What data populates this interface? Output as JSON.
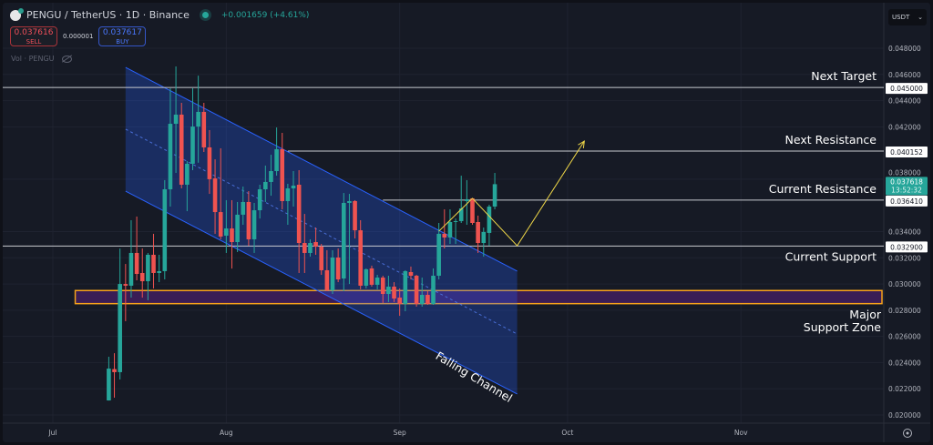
{
  "header": {
    "symbol": "PENGU",
    "title": "PENGU / TetherUS · 1D · Binance",
    "change": "+0.001659 (+4.61%)",
    "status": "market-open-dot"
  },
  "trade": {
    "sell_price": "0.037616",
    "sell_label": "SELL",
    "spread": "0.000001",
    "buy_price": "0.037617",
    "buy_label": "BUY"
  },
  "volume_indicator": {
    "label": "Vol · PENGU",
    "icon": "eye-hidden-icon"
  },
  "currency_select": {
    "value": "USDT"
  },
  "colors": {
    "up": "#26a69a",
    "down": "#ef5350",
    "channel": "#2962ff",
    "zone": "#f7a21b",
    "projection": "#f0d848",
    "background": "#161a25"
  },
  "chart_data": {
    "type": "candlestick",
    "price_ticks": [
      "0.048000",
      "0.046000",
      "0.044000",
      "0.042000",
      "0.038000",
      "0.034000",
      "0.032000",
      "0.030000",
      "0.028000",
      "0.026000",
      "0.024000",
      "0.022000",
      "0.020000"
    ],
    "ylim": [
      0.0192,
      0.05
    ],
    "time_ticks": [
      {
        "label": "Jul",
        "date": "2025-07-01"
      },
      {
        "label": "Aug",
        "date": "2025-08-01"
      },
      {
        "label": "Sep",
        "date": "2025-09-01"
      },
      {
        "label": "Oct",
        "date": "2025-10-01"
      },
      {
        "label": "Nov",
        "date": "2025-11-01"
      }
    ],
    "xlim": [
      "2025-06-22",
      "2025-11-30"
    ],
    "candles_fields": [
      "date",
      "open",
      "high",
      "low",
      "close"
    ],
    "candles": [
      [
        "2025-07-11",
        0.02111,
        0.02445,
        0.0211,
        0.02354
      ],
      [
        "2025-07-12",
        0.0235,
        0.02472,
        0.02132,
        0.02327
      ],
      [
        "2025-07-13",
        0.02327,
        0.03271,
        0.02271,
        0.03
      ],
      [
        "2025-07-14",
        0.03,
        0.03153,
        0.02716,
        0.02987
      ],
      [
        "2025-07-15",
        0.02987,
        0.03487,
        0.02896,
        0.03237
      ],
      [
        "2025-07-16",
        0.03237,
        0.03515,
        0.03028,
        0.03077
      ],
      [
        "2025-07-17",
        0.03084,
        0.03271,
        0.02896,
        0.03021
      ],
      [
        "2025-07-18",
        0.03021,
        0.03237,
        0.02876,
        0.03223
      ],
      [
        "2025-07-19",
        0.03223,
        0.03383,
        0.02966,
        0.03084
      ],
      [
        "2025-07-20",
        0.03084,
        0.03223,
        0.03014,
        0.03098
      ],
      [
        "2025-07-21",
        0.03098,
        0.03793,
        0.03035,
        0.03723
      ],
      [
        "2025-07-22",
        0.03723,
        0.04494,
        0.03591,
        0.04223
      ],
      [
        "2025-07-23",
        0.04223,
        0.04661,
        0.03848,
        0.04293
      ],
      [
        "2025-07-24",
        0.04293,
        0.04383,
        0.0373,
        0.03758
      ],
      [
        "2025-07-25",
        0.03758,
        0.03938,
        0.03556,
        0.03918
      ],
      [
        "2025-07-26",
        0.03918,
        0.04494,
        0.03869,
        0.04202
      ],
      [
        "2025-07-27",
        0.04202,
        0.04591,
        0.03926,
        0.04314
      ],
      [
        "2025-07-28",
        0.04314,
        0.04383,
        0.04008,
        0.04043
      ],
      [
        "2025-07-29",
        0.04043,
        0.04175,
        0.03688,
        0.038
      ],
      [
        "2025-07-30",
        0.03806,
        0.03952,
        0.03383,
        0.03549
      ],
      [
        "2025-07-31",
        0.03549,
        0.04036,
        0.03341,
        0.03362
      ],
      [
        "2025-08-01",
        0.03369,
        0.0364,
        0.03237,
        0.03424
      ],
      [
        "2025-08-02",
        0.03424,
        0.0364,
        0.03118,
        0.0332
      ],
      [
        "2025-08-03",
        0.0332,
        0.03626,
        0.03244,
        0.03529
      ],
      [
        "2025-08-04",
        0.03529,
        0.03744,
        0.03452,
        0.03626
      ],
      [
        "2025-08-05",
        0.03626,
        0.03709,
        0.03292,
        0.03341
      ],
      [
        "2025-08-06",
        0.03341,
        0.03619,
        0.03237,
        0.03563
      ],
      [
        "2025-08-07",
        0.03563,
        0.03758,
        0.035,
        0.03723
      ],
      [
        "2025-08-08",
        0.03723,
        0.03904,
        0.03626,
        0.03779
      ],
      [
        "2025-08-09",
        0.03779,
        0.03987,
        0.03674,
        0.03862
      ],
      [
        "2025-08-10",
        0.03862,
        0.04195,
        0.03827,
        0.04029
      ],
      [
        "2025-08-11",
        0.04029,
        0.04154,
        0.0357,
        0.03633
      ],
      [
        "2025-08-12",
        0.03633,
        0.03765,
        0.03452,
        0.0373
      ],
      [
        "2025-08-13",
        0.0373,
        0.03862,
        0.03591,
        0.03751
      ],
      [
        "2025-08-14",
        0.03758,
        0.03869,
        0.03084,
        0.03313
      ],
      [
        "2025-08-15",
        0.03313,
        0.03535,
        0.03084,
        0.03237
      ],
      [
        "2025-08-16",
        0.03237,
        0.03341,
        0.03209,
        0.03313
      ],
      [
        "2025-08-17",
        0.0332,
        0.03431,
        0.03223,
        0.03285
      ],
      [
        "2025-08-18",
        0.03285,
        0.03306,
        0.0307,
        0.03105
      ],
      [
        "2025-08-19",
        0.03105,
        0.03258,
        0.02945,
        0.02952
      ],
      [
        "2025-08-20",
        0.02952,
        0.03258,
        0.02924,
        0.03202
      ],
      [
        "2025-08-21",
        0.03202,
        0.03271,
        0.03014,
        0.03035
      ],
      [
        "2025-08-22",
        0.03042,
        0.03695,
        0.02945,
        0.03619
      ],
      [
        "2025-08-23",
        0.03619,
        0.03688,
        0.03,
        0.03633
      ],
      [
        "2025-08-24",
        0.03633,
        0.0364,
        0.03348,
        0.0341
      ],
      [
        "2025-08-25",
        0.0341,
        0.03487,
        0.02959,
        0.02987
      ],
      [
        "2025-08-26",
        0.02987,
        0.03119,
        0.02966,
        0.03112
      ],
      [
        "2025-08-27",
        0.03119,
        0.0314,
        0.0298,
        0.02994
      ],
      [
        "2025-08-28",
        0.02994,
        0.0307,
        0.02959,
        0.03049
      ],
      [
        "2025-08-29",
        0.03049,
        0.03063,
        0.02855,
        0.02924
      ],
      [
        "2025-08-30",
        0.02924,
        0.03063,
        0.02862,
        0.0298
      ],
      [
        "2025-08-31",
        0.0298,
        0.03014,
        0.02862,
        0.02889
      ],
      [
        "2025-09-01",
        0.02896,
        0.02966,
        0.02757,
        0.02848
      ],
      [
        "2025-09-02",
        0.02848,
        0.03105,
        0.02792,
        0.03098
      ],
      [
        "2025-09-03",
        0.03091,
        0.03133,
        0.03035,
        0.03063
      ],
      [
        "2025-09-04",
        0.03063,
        0.0307,
        0.02827,
        0.02848
      ],
      [
        "2025-09-05",
        0.02848,
        0.03049,
        0.02827,
        0.02917
      ],
      [
        "2025-09-06",
        0.02917,
        0.02945,
        0.02841,
        0.02848
      ],
      [
        "2025-09-07",
        0.02848,
        0.03119,
        0.02841,
        0.03063
      ],
      [
        "2025-09-08",
        0.03063,
        0.03466,
        0.03035,
        0.03383
      ],
      [
        "2025-09-09",
        0.03383,
        0.0357,
        0.03271,
        0.03355
      ],
      [
        "2025-09-10",
        0.03355,
        0.0357,
        0.03306,
        0.03473
      ],
      [
        "2025-09-11",
        0.03473,
        0.035,
        0.03306,
        0.0348
      ],
      [
        "2025-09-12",
        0.0348,
        0.03827,
        0.03466,
        0.03577
      ],
      [
        "2025-09-13",
        0.03633,
        0.03793,
        0.03452,
        0.03647
      ],
      [
        "2025-09-14",
        0.03654,
        0.03654,
        0.03452,
        0.03466
      ],
      [
        "2025-09-15",
        0.03473,
        0.03522,
        0.03237,
        0.03313
      ],
      [
        "2025-09-16",
        0.03313,
        0.03431,
        0.03209,
        0.03397
      ],
      [
        "2025-09-17",
        0.0339,
        0.03605,
        0.03292,
        0.03591
      ],
      [
        "2025-09-18",
        0.03591,
        0.03848,
        0.0357,
        0.03762
      ]
    ],
    "last_price": {
      "value": "0.037618",
      "countdown": "13:52:32"
    },
    "levels": [
      {
        "name": "Next Target",
        "price": 0.045,
        "label": "0.045000",
        "from": "full"
      },
      {
        "name": "Next Resistance",
        "price": 0.040152,
        "label": "0.040152",
        "from": "2025-08-12"
      },
      {
        "name": "Current Resistance",
        "price": 0.03641,
        "label": "0.036410",
        "from": "2025-08-29"
      },
      {
        "name": "Current Support",
        "price": 0.0329,
        "label": "0.032900",
        "from": "full"
      }
    ],
    "support_zone": {
      "name_line1": "Major",
      "name_line2": "Support Zone",
      "from": "2025-07-05",
      "low": 0.0285,
      "high": 0.0295
    },
    "channel": {
      "name": "Falling Channel",
      "start": "2025-07-14",
      "end": "2025-09-22",
      "upper": [
        0.04654,
        0.03098
      ],
      "middle": [
        0.04182,
        0.02618
      ],
      "lower": [
        0.03709,
        0.0216
      ]
    },
    "projection": [
      [
        "2025-09-08",
        0.03403
      ],
      [
        "2025-09-14",
        0.03654
      ],
      [
        "2025-09-22",
        0.03292
      ],
      [
        "2025-10-04",
        0.04091
      ]
    ]
  }
}
